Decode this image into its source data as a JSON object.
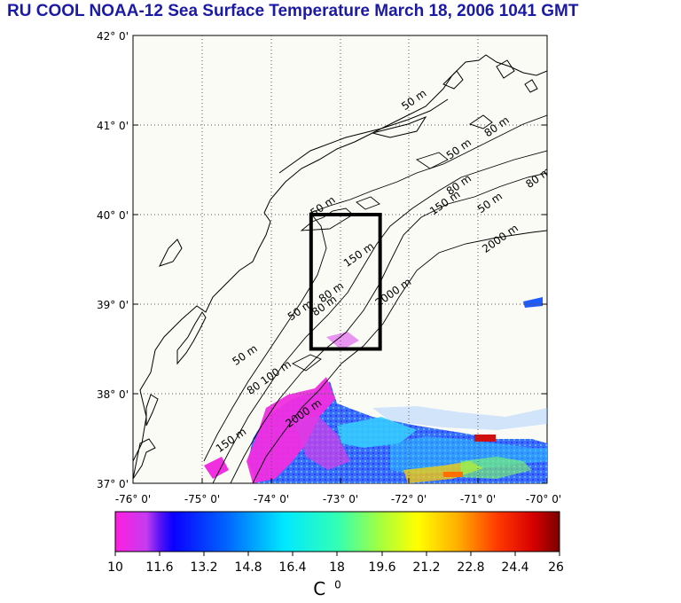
{
  "title": "RU COOL  NOAA-12 Sea Surface Temperature March 18, 2006 1041 GMT",
  "map": {
    "lat_ticks": [
      "42° 0'",
      "41° 0'",
      "40° 0'",
      "39° 0'",
      "38° 0'",
      "37° 0'"
    ],
    "lon_ticks": [
      "-76° 0'",
      "-75° 0'",
      "-74° 0'",
      "-73° 0'",
      "-72° 0'",
      "-71° 0'",
      "-70° 0'"
    ],
    "lat_range": [
      37,
      42
    ],
    "lon_range": [
      -76,
      -70
    ],
    "study_box": {
      "lon": [
        -73.42,
        -72.42
      ],
      "lat": [
        38.5,
        40.0
      ]
    },
    "contour_labels": [
      {
        "text": "50 m",
        "lon": -71.9,
        "lat": 41.25
      },
      {
        "text": "50 m",
        "lon": -71.25,
        "lat": 40.7
      },
      {
        "text": "80 m",
        "lon": -70.7,
        "lat": 40.95
      },
      {
        "text": "80 m",
        "lon": -71.25,
        "lat": 40.3
      },
      {
        "text": "80 m",
        "lon": -70.1,
        "lat": 40.38
      },
      {
        "text": "150 m",
        "lon": -71.45,
        "lat": 40.1
      },
      {
        "text": "50 m",
        "lon": -70.8,
        "lat": 40.1
      },
      {
        "text": "2000 m",
        "lon": -70.65,
        "lat": 39.7
      },
      {
        "text": "50 m",
        "lon": -73.22,
        "lat": 40.06
      },
      {
        "text": "150 m",
        "lon": -72.7,
        "lat": 39.52
      },
      {
        "text": "80 m",
        "lon": -73.1,
        "lat": 39.1
      },
      {
        "text": "2000 m",
        "lon": -72.2,
        "lat": 39.1
      },
      {
        "text": "50 m",
        "lon": -73.55,
        "lat": 38.9
      },
      {
        "text": "80 m",
        "lon": -73.2,
        "lat": 38.95
      },
      {
        "text": "50 m",
        "lon": -74.35,
        "lat": 38.4
      },
      {
        "text": "80 100 m",
        "lon": -74.0,
        "lat": 38.15
      },
      {
        "text": "2000 m",
        "lon": -73.5,
        "lat": 37.75
      },
      {
        "text": "150 m",
        "lon": -74.55,
        "lat": 37.45
      }
    ]
  },
  "colorbar": {
    "min": 10,
    "max": 26,
    "ticks": [
      "10",
      "11.6",
      "13.2",
      "14.8",
      "16.4",
      "18",
      "19.6",
      "21.2",
      "22.8",
      "24.4",
      "26"
    ],
    "unit": "C",
    "unit_sup": "0"
  }
}
